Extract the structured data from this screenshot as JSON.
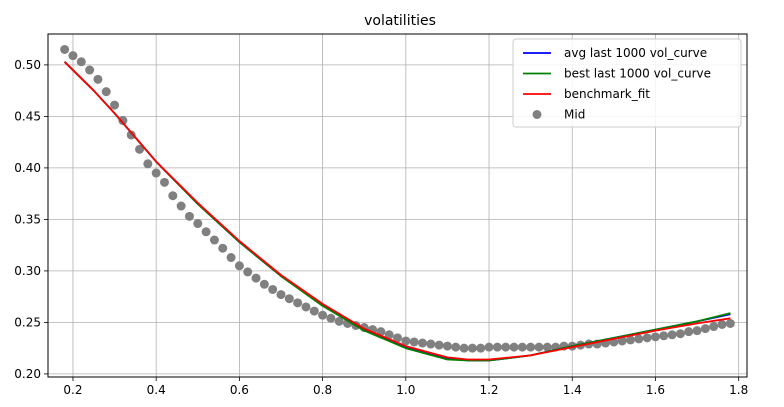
{
  "chart_data": {
    "type": "line",
    "title": "volatilities",
    "xlabel": "",
    "ylabel": "",
    "xlim": [
      0.14,
      1.82
    ],
    "ylim": [
      0.197,
      0.53
    ],
    "xticks": [
      "0.2",
      "0.4",
      "0.6",
      "0.8",
      "1.0",
      "1.2",
      "1.4",
      "1.6",
      "1.8"
    ],
    "yticks": [
      "0.20",
      "0.25",
      "0.30",
      "0.35",
      "0.40",
      "0.45",
      "0.50"
    ],
    "grid": true,
    "legend_position": "top-right",
    "series": [
      {
        "name": "avg last 1000 vol_curve",
        "kind": "line",
        "color": "#0000ff",
        "x": [
          0.18,
          0.25,
          0.3,
          0.4,
          0.5,
          0.6,
          0.7,
          0.8,
          0.9,
          1.0,
          1.1,
          1.15,
          1.2,
          1.3,
          1.4,
          1.5,
          1.6,
          1.7,
          1.78
        ],
        "y": [
          0.503,
          0.475,
          0.453,
          0.406,
          0.365,
          0.328,
          0.295,
          0.267,
          0.243,
          0.226,
          0.215,
          0.213,
          0.213,
          0.218,
          0.227,
          0.235,
          0.243,
          0.251,
          0.258
        ]
      },
      {
        "name": "best last 1000 vol_curve",
        "kind": "line",
        "color": "#008000",
        "x": [
          0.18,
          0.25,
          0.3,
          0.4,
          0.5,
          0.6,
          0.7,
          0.8,
          0.9,
          1.0,
          1.1,
          1.15,
          1.2,
          1.3,
          1.4,
          1.5,
          1.6,
          1.7,
          1.78
        ],
        "y": [
          0.503,
          0.475,
          0.453,
          0.406,
          0.365,
          0.328,
          0.295,
          0.266,
          0.242,
          0.225,
          0.214,
          0.213,
          0.213,
          0.218,
          0.227,
          0.235,
          0.243,
          0.251,
          0.259
        ]
      },
      {
        "name": "benchmark_fit",
        "kind": "line",
        "color": "#ff0000",
        "x": [
          0.18,
          0.25,
          0.3,
          0.4,
          0.5,
          0.6,
          0.7,
          0.8,
          0.9,
          1.0,
          1.1,
          1.15,
          1.2,
          1.3,
          1.4,
          1.5,
          1.6,
          1.7,
          1.78
        ],
        "y": [
          0.503,
          0.475,
          0.453,
          0.406,
          0.366,
          0.329,
          0.296,
          0.268,
          0.244,
          0.227,
          0.216,
          0.214,
          0.214,
          0.218,
          0.226,
          0.234,
          0.242,
          0.249,
          0.254
        ]
      },
      {
        "name": "Mid",
        "kind": "scatter",
        "color": "#808080",
        "x": [
          0.18,
          0.2,
          0.22,
          0.24,
          0.26,
          0.28,
          0.3,
          0.32,
          0.34,
          0.36,
          0.38,
          0.4,
          0.42,
          0.44,
          0.46,
          0.48,
          0.5,
          0.52,
          0.54,
          0.56,
          0.58,
          0.6,
          0.62,
          0.64,
          0.66,
          0.68,
          0.7,
          0.72,
          0.74,
          0.76,
          0.78,
          0.8,
          0.82,
          0.84,
          0.86,
          0.88,
          0.9,
          0.92,
          0.94,
          0.96,
          0.98,
          1.0,
          1.02,
          1.04,
          1.06,
          1.08,
          1.1,
          1.12,
          1.14,
          1.16,
          1.18,
          1.2,
          1.22,
          1.24,
          1.26,
          1.28,
          1.3,
          1.32,
          1.34,
          1.36,
          1.38,
          1.4,
          1.42,
          1.44,
          1.46,
          1.48,
          1.5,
          1.52,
          1.54,
          1.56,
          1.58,
          1.6,
          1.62,
          1.64,
          1.66,
          1.68,
          1.7,
          1.72,
          1.74,
          1.76,
          1.78
        ],
        "y": [
          0.515,
          0.509,
          0.503,
          0.495,
          0.486,
          0.474,
          0.461,
          0.446,
          0.432,
          0.418,
          0.404,
          0.395,
          0.386,
          0.373,
          0.363,
          0.353,
          0.346,
          0.338,
          0.33,
          0.322,
          0.313,
          0.305,
          0.299,
          0.293,
          0.287,
          0.282,
          0.277,
          0.273,
          0.269,
          0.265,
          0.261,
          0.257,
          0.254,
          0.251,
          0.249,
          0.247,
          0.245,
          0.243,
          0.241,
          0.238,
          0.235,
          0.232,
          0.231,
          0.23,
          0.229,
          0.228,
          0.227,
          0.226,
          0.225,
          0.225,
          0.225,
          0.226,
          0.226,
          0.226,
          0.226,
          0.226,
          0.226,
          0.226,
          0.226,
          0.226,
          0.227,
          0.227,
          0.228,
          0.229,
          0.229,
          0.23,
          0.231,
          0.232,
          0.233,
          0.234,
          0.235,
          0.236,
          0.237,
          0.238,
          0.239,
          0.241,
          0.242,
          0.244,
          0.246,
          0.248,
          0.249
        ]
      }
    ]
  }
}
